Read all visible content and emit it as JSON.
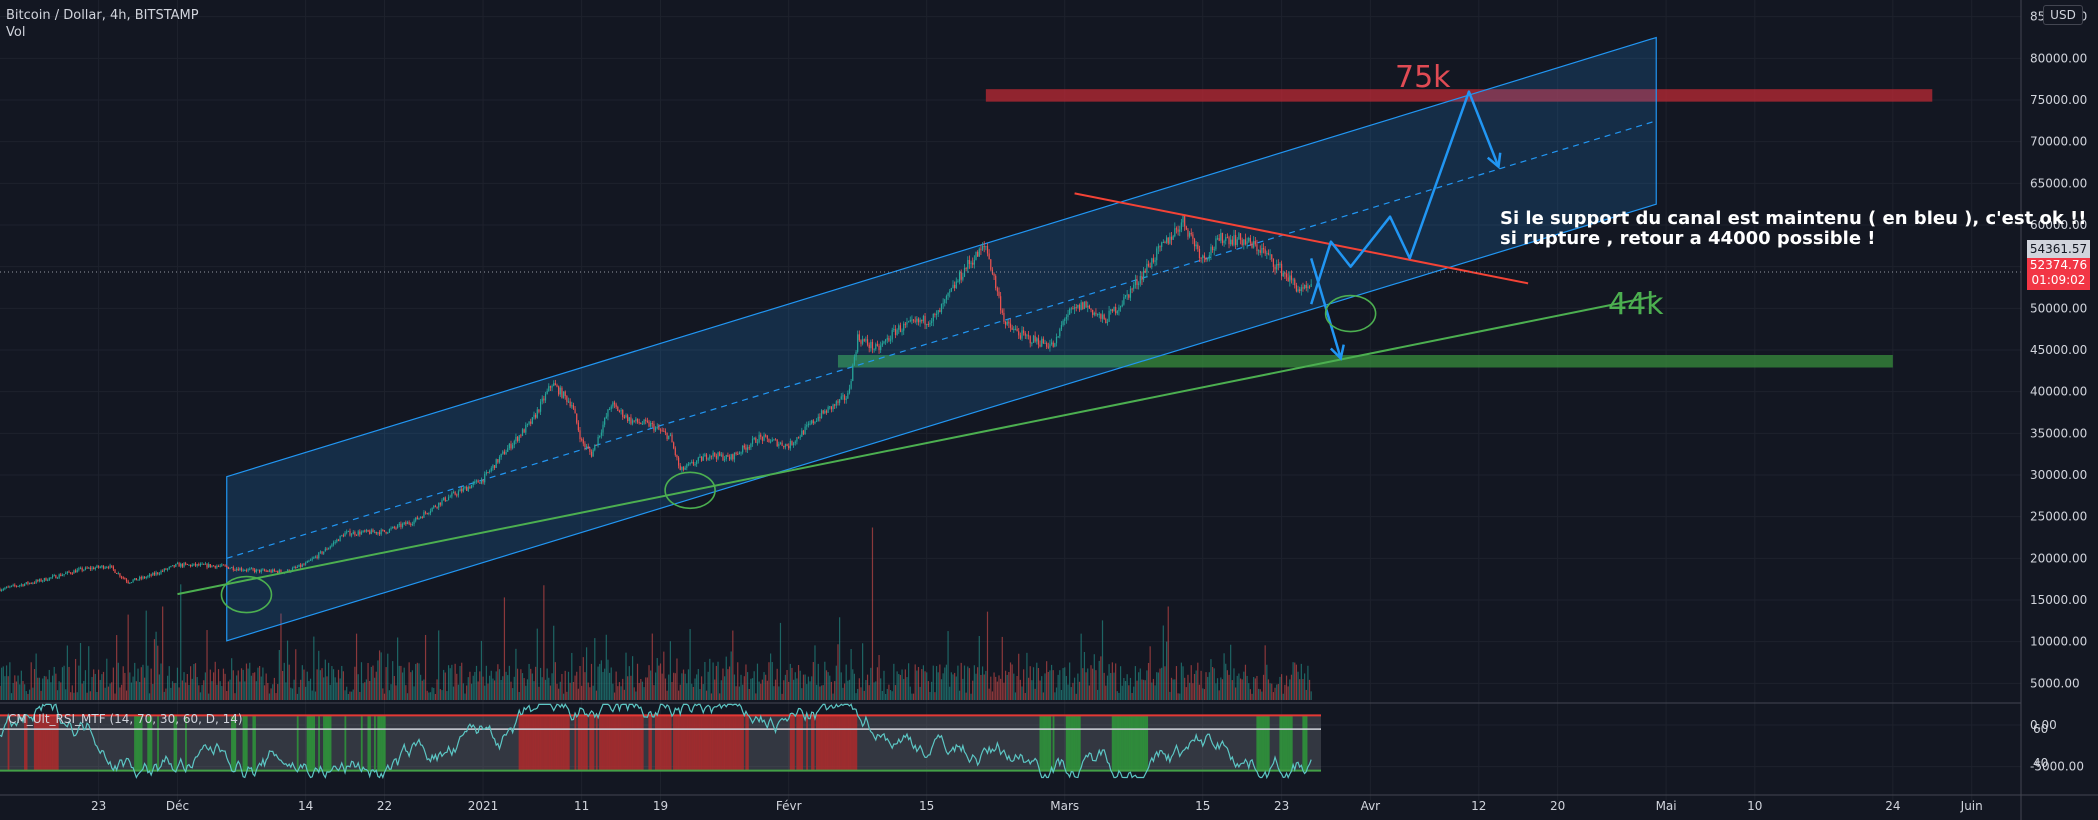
{
  "header": {
    "symbol_line": "Bitcoin / Dollar, 4h, BITSTAMP",
    "volume_label": "Vol",
    "currency_badge": "USD"
  },
  "price_tags": {
    "last": "54361.57",
    "current": "52374.76",
    "countdown": "01:09:02"
  },
  "annotations": {
    "target_high": "75k",
    "target_low": "44k",
    "note_line1": "Si le support du canal est maintenu ( en bleu ), c'est ok !!",
    "note_line2": "si rupture , retour a 44000 possible !"
  },
  "rsi_panel": {
    "title": "CM_Ult_RSI_MTF (14, 70, 30, 60, D, 14)",
    "levels": [
      70,
      60,
      30
    ],
    "axis_labels": [
      "60",
      "40"
    ]
  },
  "colors": {
    "background": "#131722",
    "up": "#26a69a",
    "down": "#ef5350",
    "channel": "#2196f3",
    "resistance_zone": "#b22833",
    "support_zone": "#388e3c",
    "trend_line": "#4caf50",
    "downtrend_line": "#f44336",
    "projection_arrow": "#2196f3",
    "rsi_line": "#5cc6c4"
  },
  "chart_data": {
    "type": "candlestick",
    "symbol": "Bitcoin / Dollar",
    "timeframe": "4h",
    "exchange": "BITSTAMP",
    "y_axis": {
      "ylim": [
        -9000,
        87000
      ],
      "ticks": [
        -5000,
        0,
        5000,
        10000,
        15000,
        20000,
        25000,
        30000,
        35000,
        40000,
        45000,
        50000,
        55000,
        60000,
        65000,
        70000,
        75000,
        80000,
        85000
      ],
      "tick_labels": [
        "-5000.00",
        "0.00",
        "5000.00",
        "10000.00",
        "15000.00",
        "20000.00",
        "25000.00",
        "30000.00",
        "35000.00",
        "40000.00",
        "45000.00",
        "50000.00",
        "55000.00",
        "60000.00",
        "65000.00",
        "70000.00",
        "75000.00",
        "80000.00",
        "85000.00"
      ]
    },
    "x_axis": {
      "xlim": [
        "2020-11-13",
        "2021-06-06"
      ],
      "tick_labels": [
        {
          "date": "2020-11-23",
          "label": "23"
        },
        {
          "date": "2020-12-01",
          "label": "Déc"
        },
        {
          "date": "2020-12-14",
          "label": "14"
        },
        {
          "date": "2020-12-22",
          "label": "22"
        },
        {
          "date": "2021-01-01",
          "label": "2021"
        },
        {
          "date": "2021-01-11",
          "label": "11"
        },
        {
          "date": "2021-01-19",
          "label": "19"
        },
        {
          "date": "2021-02-01",
          "label": "Févr"
        },
        {
          "date": "2021-02-15",
          "label": "15"
        },
        {
          "date": "2021-03-01",
          "label": "Mars"
        },
        {
          "date": "2021-03-15",
          "label": "15"
        },
        {
          "date": "2021-03-23",
          "label": "23"
        },
        {
          "date": "2021-04-01",
          "label": "Avr"
        },
        {
          "date": "2021-04-12",
          "label": "12"
        },
        {
          "date": "2021-04-20",
          "label": "20"
        },
        {
          "date": "2021-05-01",
          "label": "Mai"
        },
        {
          "date": "2021-05-10",
          "label": "10"
        },
        {
          "date": "2021-05-24",
          "label": "24"
        },
        {
          "date": "2021-06-01",
          "label": "Juin"
        }
      ]
    },
    "price_path": [
      [
        "2020-11-13",
        16300
      ],
      [
        "2020-11-17",
        17300
      ],
      [
        "2020-11-21",
        18600
      ],
      [
        "2020-11-24",
        19100
      ],
      [
        "2020-11-26",
        17200
      ],
      [
        "2020-11-28",
        17800
      ],
      [
        "2020-12-01",
        19200
      ],
      [
        "2020-12-05",
        19100
      ],
      [
        "2020-12-09",
        18500
      ],
      [
        "2020-12-12",
        18400
      ],
      [
        "2020-12-14",
        19300
      ],
      [
        "2020-12-16",
        21000
      ],
      [
        "2020-12-18",
        23000
      ],
      [
        "2020-12-22",
        23200
      ],
      [
        "2020-12-25",
        24500
      ],
      [
        "2020-12-28",
        27000
      ],
      [
        "2021-01-01",
        29500
      ],
      [
        "2021-01-03",
        32500
      ],
      [
        "2021-01-06",
        36500
      ],
      [
        "2021-01-08",
        41000
      ],
      [
        "2021-01-10",
        38500
      ],
      [
        "2021-01-11",
        34000
      ],
      [
        "2021-01-12",
        32500
      ],
      [
        "2021-01-14",
        38500
      ],
      [
        "2021-01-16",
        36500
      ],
      [
        "2021-01-18",
        36000
      ],
      [
        "2021-01-20",
        34500
      ],
      [
        "2021-01-21",
        30500
      ],
      [
        "2021-01-24",
        32500
      ],
      [
        "2021-01-26",
        32000
      ],
      [
        "2021-01-29",
        34500
      ],
      [
        "2021-02-01",
        33500
      ],
      [
        "2021-02-04",
        37000
      ],
      [
        "2021-02-07",
        39500
      ],
      [
        "2021-02-08",
        46500
      ],
      [
        "2021-02-10",
        45000
      ],
      [
        "2021-02-12",
        47500
      ],
      [
        "2021-02-16",
        49000
      ],
      [
        "2021-02-19",
        55000
      ],
      [
        "2021-02-21",
        57500
      ],
      [
        "2021-02-23",
        48000
      ],
      [
        "2021-02-25",
        46500
      ],
      [
        "2021-02-28",
        45500
      ],
      [
        "2021-03-01",
        49000
      ],
      [
        "2021-03-03",
        50500
      ],
      [
        "2021-03-05",
        48500
      ],
      [
        "2021-03-07",
        51000
      ],
      [
        "2021-03-10",
        56000
      ],
      [
        "2021-03-13",
        60500
      ],
      [
        "2021-03-15",
        56000
      ],
      [
        "2021-03-17",
        58500
      ],
      [
        "2021-03-19",
        58200
      ],
      [
        "2021-03-21",
        57000
      ],
      [
        "2021-03-23",
        54500
      ],
      [
        "2021-03-25",
        52000
      ],
      [
        "2021-03-26",
        52374
      ]
    ],
    "channel": {
      "upper": [
        [
          "2020-12-06",
          29800
        ],
        [
          "2021-04-30",
          82500
        ]
      ],
      "middle": [
        [
          "2020-12-06",
          20000
        ],
        [
          "2021-04-30",
          72500
        ]
      ],
      "lower": [
        [
          "2020-12-06",
          10100
        ],
        [
          "2021-04-30",
          62500
        ]
      ]
    },
    "resistance_zone": {
      "from": "2021-02-21",
      "to": "2021-05-28",
      "y_low": 74800,
      "y_high": 76300,
      "label": "75k"
    },
    "support_zone": {
      "from": "2021-02-06",
      "to": "2021-05-24",
      "y_low": 42900,
      "y_high": 44400,
      "label": "44k"
    },
    "trend_lines": [
      {
        "kind": "support",
        "points": [
          [
            "2020-12-01",
            15700
          ],
          [
            "2021-04-30",
            51500
          ]
        ]
      },
      {
        "kind": "downtrend",
        "points": [
          [
            "2021-03-02",
            63800
          ],
          [
            "2021-04-17",
            53000
          ]
        ]
      }
    ],
    "projection_up": [
      [
        "2021-03-26",
        50500
      ],
      [
        "2021-03-28",
        58000
      ],
      [
        "2021-03-30",
        55000
      ],
      [
        "2021-04-03",
        61000
      ],
      [
        "2021-04-05",
        56000
      ],
      [
        "2021-04-11",
        76000
      ],
      [
        "2021-04-14",
        67000
      ]
    ],
    "projection_down": [
      [
        "2021-03-26",
        56000
      ],
      [
        "2021-03-29",
        44000
      ]
    ],
    "highlight_circles": [
      "2020-12-08",
      "2021-01-22",
      "2021-03-30"
    ],
    "current_price": 52374.76,
    "last_price_line": 54361.57
  }
}
